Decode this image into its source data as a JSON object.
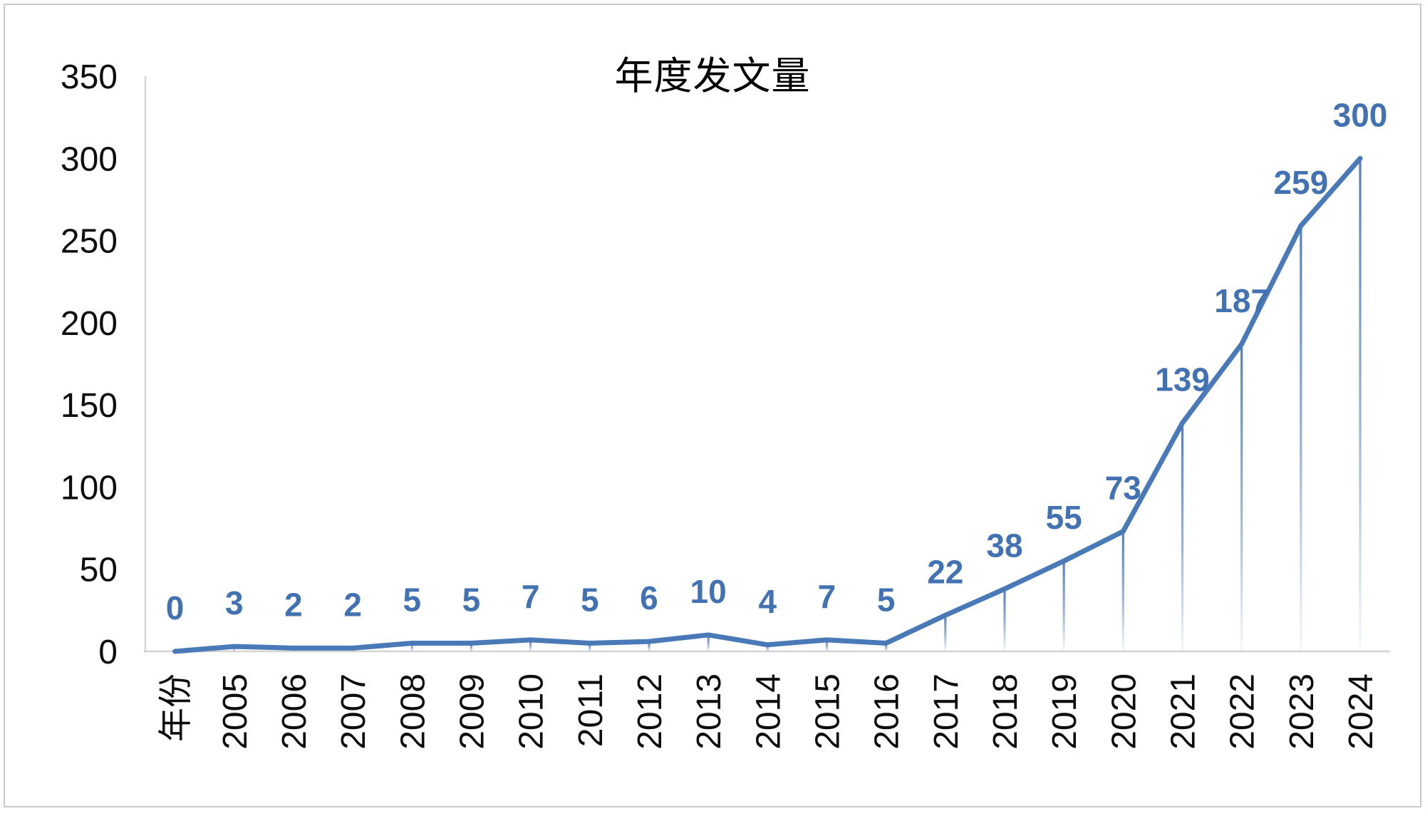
{
  "chart_data": {
    "type": "line",
    "title": "年度发文量",
    "categories": [
      "年份",
      "2005",
      "2006",
      "2007",
      "2008",
      "2009",
      "2010",
      "2011",
      "2012",
      "2013",
      "2014",
      "2015",
      "2016",
      "2017",
      "2018",
      "2019",
      "2020",
      "2021",
      "2022",
      "2023",
      "2024"
    ],
    "values": [
      0,
      3,
      2,
      2,
      5,
      5,
      7,
      5,
      6,
      10,
      4,
      7,
      5,
      22,
      38,
      55,
      73,
      139,
      187,
      259,
      300
    ],
    "xlabel": "",
    "ylabel": "",
    "ylim": [
      0,
      350
    ],
    "y_ticks": [
      0,
      50,
      100,
      150,
      200,
      250,
      300,
      350
    ],
    "x_tick_rotation": -90,
    "grid": false,
    "legend_position": "none",
    "data_labels_shown": true,
    "drop_lines": true,
    "colors": {
      "line": "#4a79b7",
      "data_label": "#4372b2",
      "axis": "#d4d4d4",
      "tick_label": "#0d0d0d",
      "title": "#000000",
      "background": "#ffffff",
      "frame_border": "#c9c9c9"
    }
  }
}
